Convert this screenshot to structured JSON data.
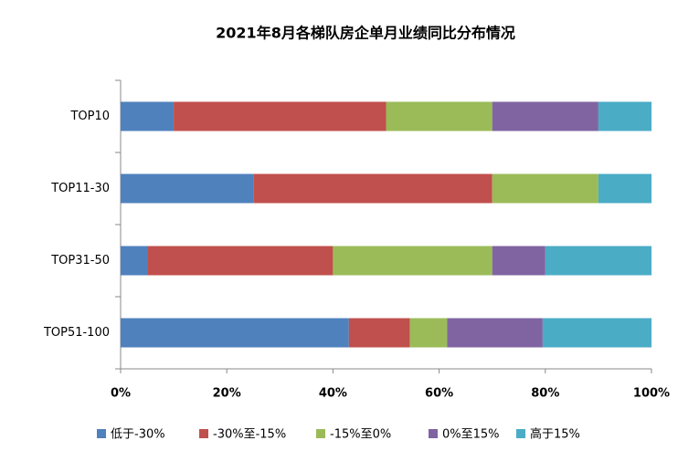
{
  "chart_data": {
    "type": "stacked-bar-horizontal",
    "title": "2021年8月各梯队房企单月业绩同比分布情况",
    "categories": [
      "TOP10",
      "TOP11-30",
      "TOP31-50",
      "TOP51-100"
    ],
    "series": [
      {
        "name": "低于-30%",
        "color": "#4f81bd",
        "values": [
          10,
          25,
          5,
          43
        ]
      },
      {
        "name": "-30%至-15%",
        "color": "#c0504d",
        "values": [
          40,
          45,
          35,
          11.5
        ]
      },
      {
        "name": "-15%至0%",
        "color": "#9bbb59",
        "values": [
          20,
          20,
          30,
          7
        ]
      },
      {
        "name": "0%至15%",
        "color": "#8064a2",
        "values": [
          20,
          0,
          10,
          18
        ]
      },
      {
        "name": "高于15%",
        "color": "#4bacc6",
        "values": [
          10,
          10,
          20,
          20.5
        ]
      }
    ],
    "xlim": [
      0,
      100
    ],
    "xticks": [
      {
        "value": 0,
        "label": "0%"
      },
      {
        "value": 20,
        "label": "20%"
      },
      {
        "value": 40,
        "label": "40%"
      },
      {
        "value": 60,
        "label": "60%"
      },
      {
        "value": 80,
        "label": "80%"
      },
      {
        "value": 100,
        "label": "100%"
      }
    ],
    "legend": "bottom"
  }
}
